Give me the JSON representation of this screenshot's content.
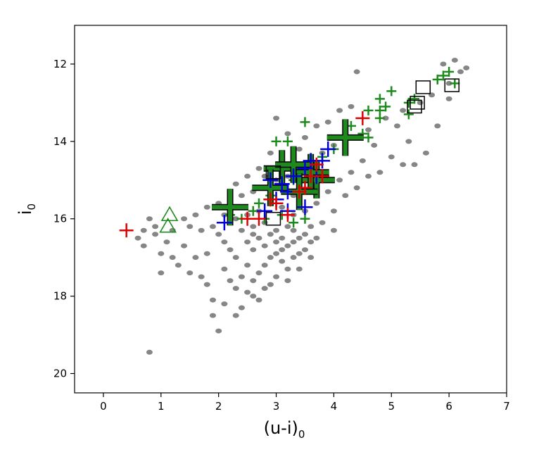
{
  "chart_data": {
    "type": "scatter",
    "title": "",
    "xlabel": "(u-i)",
    "xlabel_sub": "0",
    "ylabel": "i",
    "ylabel_sub": "0",
    "xlim": [
      -0.5,
      7
    ],
    "ylim": [
      20.5,
      11
    ],
    "y_inverted": true,
    "grid": false,
    "xticks": [
      0,
      1,
      2,
      3,
      4,
      5,
      6,
      7
    ],
    "yticks": [
      12,
      14,
      16,
      18,
      20
    ],
    "series": [
      {
        "marker": "dot",
        "color": "#808080",
        "points": [
          [
            0.8,
            19.45
          ],
          [
            2.0,
            18.9
          ],
          [
            2.3,
            18.5
          ],
          [
            2.1,
            18.2
          ],
          [
            1.9,
            18.1
          ],
          [
            2.4,
            18.3
          ],
          [
            2.6,
            18.0
          ],
          [
            2.8,
            17.8
          ],
          [
            2.2,
            17.6
          ],
          [
            1.7,
            17.5
          ],
          [
            1.5,
            17.4
          ],
          [
            1.0,
            17.4
          ],
          [
            1.3,
            17.2
          ],
          [
            1.6,
            17.0
          ],
          [
            1.8,
            16.9
          ],
          [
            1.4,
            16.7
          ],
          [
            1.1,
            16.6
          ],
          [
            0.7,
            16.7
          ],
          [
            0.6,
            16.5
          ],
          [
            0.9,
            16.4
          ],
          [
            1.2,
            16.3
          ],
          [
            1.5,
            16.2
          ],
          [
            1.7,
            16.3
          ],
          [
            0.8,
            16.0
          ],
          [
            2.2,
            16.8
          ],
          [
            2.3,
            17.0
          ],
          [
            2.5,
            17.2
          ],
          [
            2.4,
            17.5
          ],
          [
            2.6,
            17.6
          ],
          [
            2.7,
            17.4
          ],
          [
            2.8,
            17.2
          ],
          [
            2.9,
            17.0
          ],
          [
            3.0,
            16.9
          ],
          [
            3.1,
            16.8
          ],
          [
            3.2,
            16.7
          ],
          [
            3.3,
            16.6
          ],
          [
            3.4,
            16.5
          ],
          [
            2.5,
            16.6
          ],
          [
            2.6,
            16.8
          ],
          [
            2.7,
            16.5
          ],
          [
            2.8,
            16.7
          ],
          [
            2.9,
            16.4
          ],
          [
            3.0,
            16.3
          ],
          [
            3.1,
            16.5
          ],
          [
            3.2,
            16.2
          ],
          [
            3.3,
            16.3
          ],
          [
            3.5,
            16.4
          ],
          [
            3.6,
            16.2
          ],
          [
            2.0,
            16.4
          ],
          [
            2.1,
            16.6
          ],
          [
            1.9,
            16.2
          ],
          [
            2.4,
            16.3
          ],
          [
            2.6,
            16.2
          ],
          [
            2.8,
            16.1
          ],
          [
            3.0,
            16.6
          ],
          [
            3.1,
            17.1
          ],
          [
            3.2,
            17.3
          ],
          [
            3.0,
            17.5
          ],
          [
            2.9,
            17.7
          ],
          [
            2.5,
            17.9
          ],
          [
            3.3,
            17.0
          ],
          [
            3.4,
            16.9
          ],
          [
            3.5,
            16.8
          ],
          [
            3.6,
            16.6
          ],
          [
            3.7,
            16.5
          ],
          [
            2.7,
            18.1
          ],
          [
            2.3,
            17.8
          ],
          [
            2.1,
            17.3
          ],
          [
            1.8,
            17.7
          ],
          [
            1.2,
            17.0
          ],
          [
            1.6,
            15.9
          ],
          [
            1.8,
            15.7
          ],
          [
            2.0,
            15.6
          ],
          [
            2.2,
            15.5
          ],
          [
            2.4,
            15.4
          ],
          [
            2.6,
            15.3
          ],
          [
            2.8,
            15.2
          ],
          [
            3.0,
            15.0
          ],
          [
            3.2,
            14.9
          ],
          [
            3.4,
            14.7
          ],
          [
            3.6,
            14.5
          ],
          [
            3.8,
            14.3
          ],
          [
            4.0,
            14.1
          ],
          [
            4.3,
            13.9
          ],
          [
            4.6,
            13.7
          ],
          [
            4.9,
            13.4
          ],
          [
            5.2,
            13.2
          ],
          [
            5.5,
            13.0
          ],
          [
            5.7,
            12.8
          ],
          [
            6.0,
            12.5
          ],
          [
            6.2,
            12.2
          ],
          [
            6.1,
            11.9
          ],
          [
            4.4,
            12.2
          ],
          [
            5.1,
            13.6
          ],
          [
            5.3,
            14.0
          ],
          [
            5.6,
            14.3
          ],
          [
            5.4,
            14.6
          ],
          [
            5.0,
            14.4
          ],
          [
            4.7,
            14.1
          ],
          [
            4.5,
            14.5
          ],
          [
            4.3,
            14.8
          ],
          [
            4.1,
            15.0
          ],
          [
            3.9,
            15.3
          ],
          [
            3.7,
            15.6
          ],
          [
            3.5,
            15.8
          ],
          [
            3.3,
            15.9
          ],
          [
            3.1,
            15.7
          ],
          [
            2.9,
            15.6
          ],
          [
            2.7,
            15.8
          ],
          [
            2.5,
            15.9
          ],
          [
            2.3,
            16.0
          ],
          [
            2.1,
            15.9
          ],
          [
            3.0,
            13.4
          ],
          [
            3.2,
            13.8
          ],
          [
            3.4,
            14.2
          ],
          [
            3.5,
            13.9
          ],
          [
            3.7,
            13.6
          ],
          [
            3.9,
            13.5
          ],
          [
            4.1,
            13.2
          ],
          [
            4.3,
            13.1
          ],
          [
            2.9,
            14.3
          ],
          [
            3.1,
            14.5
          ],
          [
            2.7,
            14.7
          ],
          [
            2.5,
            14.9
          ],
          [
            2.3,
            15.1
          ],
          [
            3.8,
            16.1
          ],
          [
            4.0,
            15.8
          ],
          [
            4.2,
            15.4
          ],
          [
            4.4,
            15.2
          ],
          [
            4.6,
            14.9
          ],
          [
            4.8,
            14.8
          ],
          [
            3.6,
            17.0
          ],
          [
            3.4,
            17.3
          ],
          [
            3.2,
            17.6
          ],
          [
            1.9,
            18.5
          ],
          [
            5.2,
            14.6
          ],
          [
            5.8,
            13.6
          ],
          [
            6.0,
            12.9
          ],
          [
            5.9,
            12.0
          ],
          [
            6.3,
            12.1
          ],
          [
            4.0,
            16.3
          ],
          [
            3.3,
            15.4
          ],
          [
            2.8,
            14.9
          ],
          [
            2.6,
            16.4
          ],
          [
            1.0,
            16.9
          ],
          [
            1.4,
            16.0
          ],
          [
            0.9,
            16.2
          ],
          [
            0.7,
            16.3
          ]
        ]
      },
      {
        "marker": "plus-small",
        "color": "#1e8a1e",
        "points": [
          [
            2.2,
            15.9
          ],
          [
            2.4,
            16.0
          ],
          [
            2.7,
            15.6
          ],
          [
            2.9,
            15.4
          ],
          [
            3.1,
            15.2
          ],
          [
            3.3,
            15.0
          ],
          [
            3.4,
            14.8
          ],
          [
            3.6,
            14.6
          ],
          [
            3.8,
            14.4
          ],
          [
            4.0,
            14.2
          ],
          [
            3.2,
            14.0
          ],
          [
            3.5,
            13.5
          ],
          [
            4.3,
            13.6
          ],
          [
            4.5,
            13.8
          ],
          [
            4.6,
            13.9
          ],
          [
            4.8,
            13.2
          ],
          [
            4.8,
            13.4
          ],
          [
            4.9,
            13.1
          ],
          [
            4.8,
            12.9
          ],
          [
            5.0,
            12.7
          ],
          [
            5.3,
            13.3
          ],
          [
            5.3,
            13.0
          ],
          [
            5.4,
            12.9
          ],
          [
            5.8,
            12.4
          ],
          [
            5.9,
            12.3
          ],
          [
            6.0,
            12.2
          ],
          [
            6.1,
            12.5
          ],
          [
            3.0,
            14.0
          ],
          [
            3.3,
            16.1
          ],
          [
            3.5,
            16.0
          ],
          [
            4.6,
            13.2
          ],
          [
            3.1,
            15.9
          ],
          [
            2.8,
            16.0
          ],
          [
            2.6,
            15.8
          ]
        ]
      },
      {
        "marker": "plus-big-green",
        "color": "#1e8a1e",
        "points": [
          [
            2.2,
            15.7
          ],
          [
            3.1,
            14.7
          ],
          [
            3.7,
            15.0
          ],
          [
            4.2,
            13.9
          ],
          [
            3.6,
            14.8
          ],
          [
            3.4,
            15.3
          ],
          [
            2.9,
            15.2
          ],
          [
            3.3,
            14.6
          ]
        ]
      },
      {
        "marker": "plus-blue",
        "color": "#0000e0",
        "points": [
          [
            2.1,
            16.1
          ],
          [
            2.8,
            15.8
          ],
          [
            3.0,
            15.5
          ],
          [
            3.1,
            15.1
          ],
          [
            3.2,
            15.3
          ],
          [
            3.3,
            14.9
          ],
          [
            3.5,
            14.7
          ],
          [
            3.6,
            14.5
          ],
          [
            3.7,
            14.9
          ],
          [
            3.9,
            14.2
          ],
          [
            3.5,
            15.7
          ],
          [
            3.2,
            15.8
          ],
          [
            2.9,
            15.0
          ],
          [
            3.8,
            14.5
          ]
        ]
      },
      {
        "marker": "plus-red",
        "color": "#e00000",
        "points": [
          [
            0.4,
            16.3
          ],
          [
            2.5,
            16.0
          ],
          [
            2.7,
            16.0
          ],
          [
            3.0,
            15.6
          ],
          [
            3.2,
            15.9
          ],
          [
            3.4,
            15.3
          ],
          [
            3.6,
            14.9
          ],
          [
            3.8,
            14.9
          ],
          [
            3.7,
            14.6
          ],
          [
            4.5,
            13.4
          ],
          [
            2.9,
            15.5
          ],
          [
            3.5,
            15.2
          ]
        ]
      },
      {
        "marker": "square",
        "color": "#000000",
        "points": [
          [
            2.95,
            14.8
          ],
          [
            2.95,
            16.0
          ],
          [
            5.45,
            13.0
          ],
          [
            5.55,
            12.6
          ],
          [
            6.05,
            12.55
          ],
          [
            5.4,
            13.1
          ]
        ]
      },
      {
        "marker": "triangle",
        "color": "#1e8a1e",
        "points": [
          [
            1.15,
            15.9
          ],
          [
            1.12,
            16.2
          ]
        ]
      }
    ]
  }
}
